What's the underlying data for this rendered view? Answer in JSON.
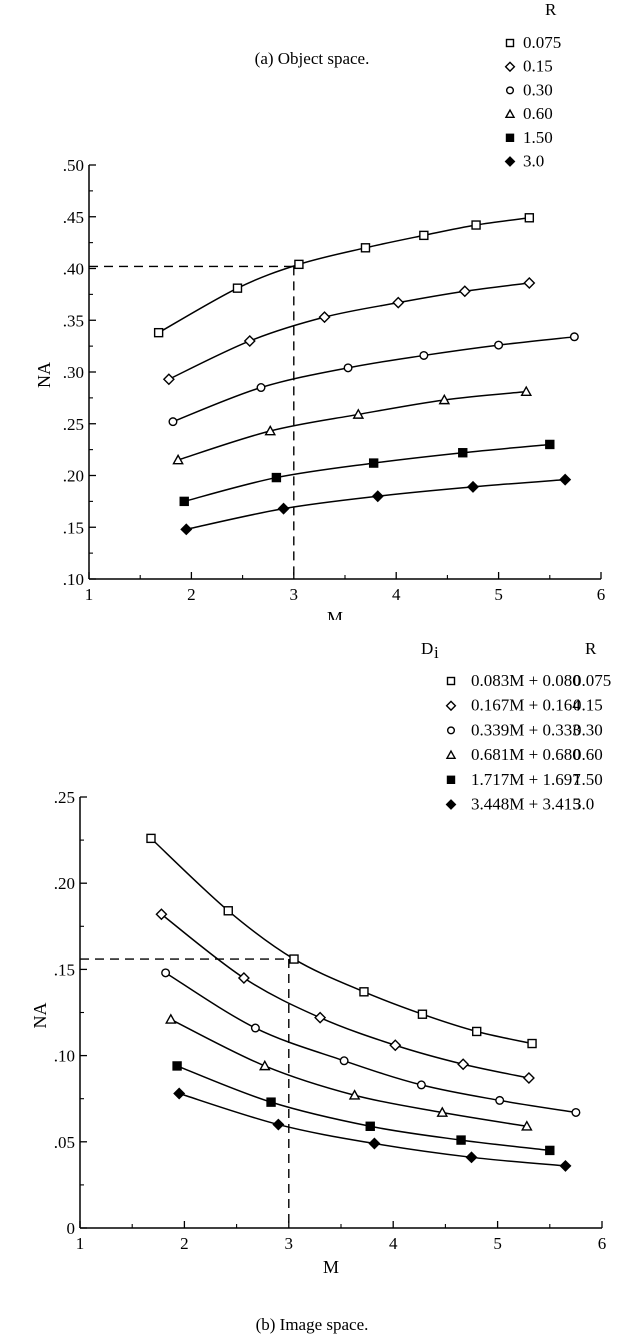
{
  "chart_data": [
    {
      "type": "line",
      "caption": "(a) Object space.",
      "xlabel": "M",
      "ylabel": "NA",
      "xlim": [
        1,
        6
      ],
      "ylim": [
        0.1,
        0.5
      ],
      "xticks": [
        "1",
        "2",
        "3",
        "4",
        "5",
        "6"
      ],
      "yticks": [
        ".10",
        ".15",
        ".20",
        ".25",
        ".30",
        ".35",
        ".40",
        ".45",
        ".50"
      ],
      "legend": {
        "header_r": "R",
        "placement": "top-right"
      },
      "reference": {
        "x": 3.0,
        "y": 0.402
      },
      "series": [
        {
          "name": "0.075",
          "marker": "open-square",
          "x": [
            1.68,
            2.45,
            3.05,
            3.7,
            4.27,
            4.78,
            5.3
          ],
          "y": [
            0.338,
            0.381,
            0.404,
            0.42,
            0.432,
            0.442,
            0.449
          ]
        },
        {
          "name": "0.15",
          "marker": "open-diamond",
          "x": [
            1.78,
            2.57,
            3.3,
            4.02,
            4.67,
            5.3
          ],
          "y": [
            0.293,
            0.33,
            0.353,
            0.367,
            0.378,
            0.386
          ]
        },
        {
          "name": "0.30",
          "marker": "open-circle",
          "x": [
            1.82,
            2.68,
            3.53,
            4.27,
            5.0,
            5.74
          ],
          "y": [
            0.252,
            0.285,
            0.304,
            0.316,
            0.326,
            0.334
          ]
        },
        {
          "name": "0.60",
          "marker": "open-triangle",
          "x": [
            1.87,
            2.77,
            3.63,
            4.47,
            5.27
          ],
          "y": [
            0.215,
            0.243,
            0.259,
            0.273,
            0.281
          ]
        },
        {
          "name": "1.50",
          "marker": "filled-square",
          "x": [
            1.93,
            2.83,
            3.78,
            4.65,
            5.5
          ],
          "y": [
            0.175,
            0.198,
            0.212,
            0.222,
            0.23
          ]
        },
        {
          "name": "3.0",
          "marker": "filled-diamond",
          "x": [
            1.95,
            2.9,
            3.82,
            4.75,
            5.65
          ],
          "y": [
            0.148,
            0.168,
            0.18,
            0.189,
            0.196
          ]
        }
      ]
    },
    {
      "type": "line",
      "caption": "(b) Image space.",
      "xlabel": "M",
      "ylabel": "NA",
      "xlim": [
        1,
        6
      ],
      "ylim": [
        0,
        0.25
      ],
      "xticks": [
        "1",
        "2",
        "3",
        "4",
        "5",
        "6"
      ],
      "yticks": [
        "0",
        ".05",
        ".10",
        ".15",
        ".20",
        ".25"
      ],
      "legend": {
        "header_d": "D",
        "header_d_sub": "i",
        "header_r": "R",
        "placement": "top-right"
      },
      "reference": {
        "x": 3.0,
        "y": 0.156
      },
      "series": [
        {
          "name": "0.075",
          "di": "0.083M + 0.080",
          "marker": "open-square",
          "x": [
            1.68,
            2.42,
            3.05,
            3.72,
            4.28,
            4.8,
            5.33
          ],
          "y": [
            0.226,
            0.184,
            0.156,
            0.137,
            0.124,
            0.114,
            0.107
          ]
        },
        {
          "name": "0.15",
          "di": "0.167M + 0.164",
          "marker": "open-diamond",
          "x": [
            1.78,
            2.57,
            3.3,
            4.02,
            4.67,
            5.3
          ],
          "y": [
            0.182,
            0.145,
            0.122,
            0.106,
            0.095,
            0.087
          ]
        },
        {
          "name": "0.30",
          "di": "0.339M + 0.333",
          "marker": "open-circle",
          "x": [
            1.82,
            2.68,
            3.53,
            4.27,
            5.02,
            5.75
          ],
          "y": [
            0.148,
            0.116,
            0.097,
            0.083,
            0.074,
            0.067
          ]
        },
        {
          "name": "0.60",
          "di": "0.681M + 0.680",
          "marker": "open-triangle",
          "x": [
            1.87,
            2.77,
            3.63,
            4.47,
            5.28
          ],
          "y": [
            0.121,
            0.094,
            0.077,
            0.067,
            0.059
          ]
        },
        {
          "name": "1.50",
          "di": "1.717M + 1.697",
          "marker": "filled-square",
          "x": [
            1.93,
            2.83,
            3.78,
            4.65,
            5.5
          ],
          "y": [
            0.094,
            0.073,
            0.059,
            0.051,
            0.045
          ]
        },
        {
          "name": "3.0",
          "di": "3.448M + 3.415",
          "marker": "filled-diamond",
          "x": [
            1.95,
            2.9,
            3.82,
            4.75,
            5.65
          ],
          "y": [
            0.078,
            0.06,
            0.049,
            0.041,
            0.036
          ]
        }
      ]
    }
  ]
}
